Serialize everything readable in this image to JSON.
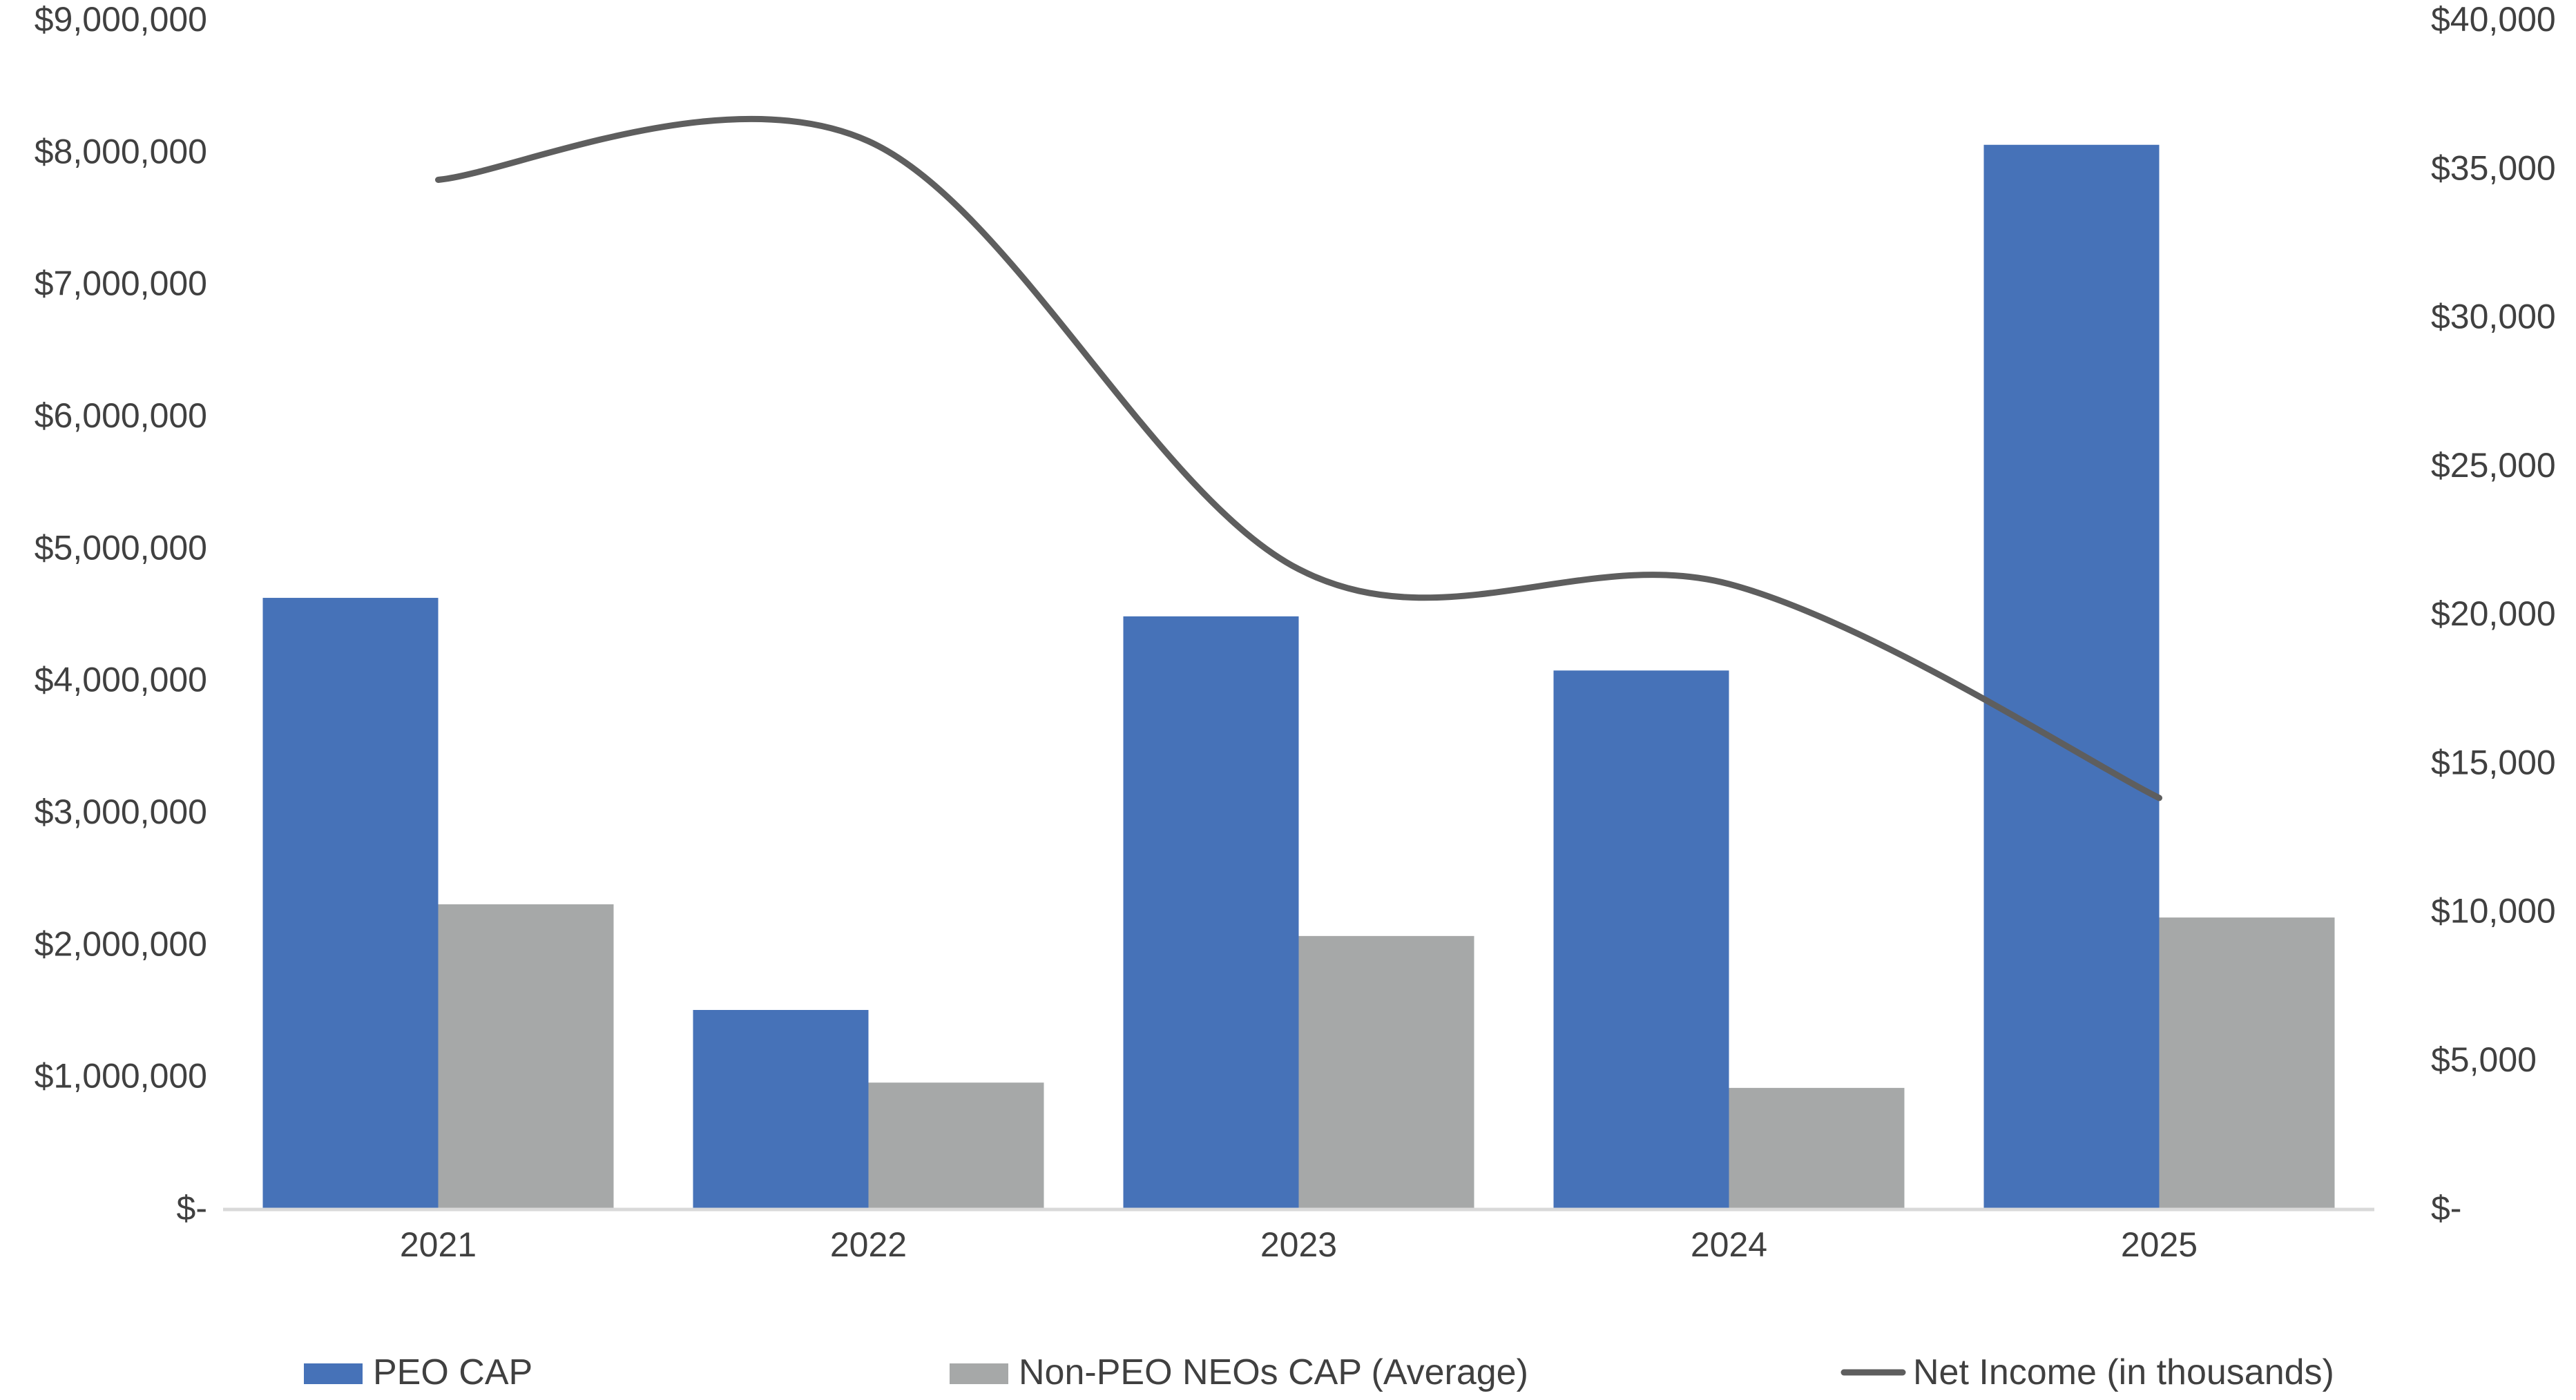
{
  "chart_data": {
    "type": "bar",
    "categories": [
      "2021",
      "2022",
      "2023",
      "2024",
      "2025"
    ],
    "series": [
      {
        "name": "PEO CAP",
        "type": "bar",
        "axis": "left",
        "color": "#4672B8",
        "values": [
          4620000,
          1500000,
          4480000,
          4070000,
          8050000
        ]
      },
      {
        "name": "Non-PEO NEOs CAP (Average)",
        "type": "bar",
        "axis": "left",
        "color": "#A6A8A8",
        "values": [
          2300000,
          950000,
          2060000,
          910000,
          2200000
        ]
      },
      {
        "name": "Net Income (in thousands)",
        "type": "line",
        "axis": "right",
        "color": "#5E5E5E",
        "smooth": true,
        "values": [
          34600,
          35900,
          21500,
          21000,
          13800
        ]
      }
    ],
    "y_left": {
      "ylim": [
        0,
        9000000
      ],
      "ticks": [
        0,
        1000000,
        2000000,
        3000000,
        4000000,
        5000000,
        6000000,
        7000000,
        8000000,
        9000000
      ],
      "tick_labels": [
        "$-",
        "$1,000,000",
        "$2,000,000",
        "$3,000,000",
        "$4,000,000",
        "$5,000,000",
        "$6,000,000",
        "$7,000,000",
        "$8,000,000",
        "$9,000,000"
      ]
    },
    "y_right": {
      "ylim": [
        0,
        40000
      ],
      "ticks": [
        0,
        5000,
        10000,
        15000,
        20000,
        25000,
        30000,
        35000,
        40000
      ],
      "tick_labels": [
        "$-",
        "$5,000",
        "$10,000",
        "$15,000",
        "$20,000",
        "$25,000",
        "$30,000",
        "$35,000",
        "$40,000"
      ]
    },
    "grid": false,
    "legend_position": "bottom",
    "axis_color": "#D9D9D9"
  }
}
